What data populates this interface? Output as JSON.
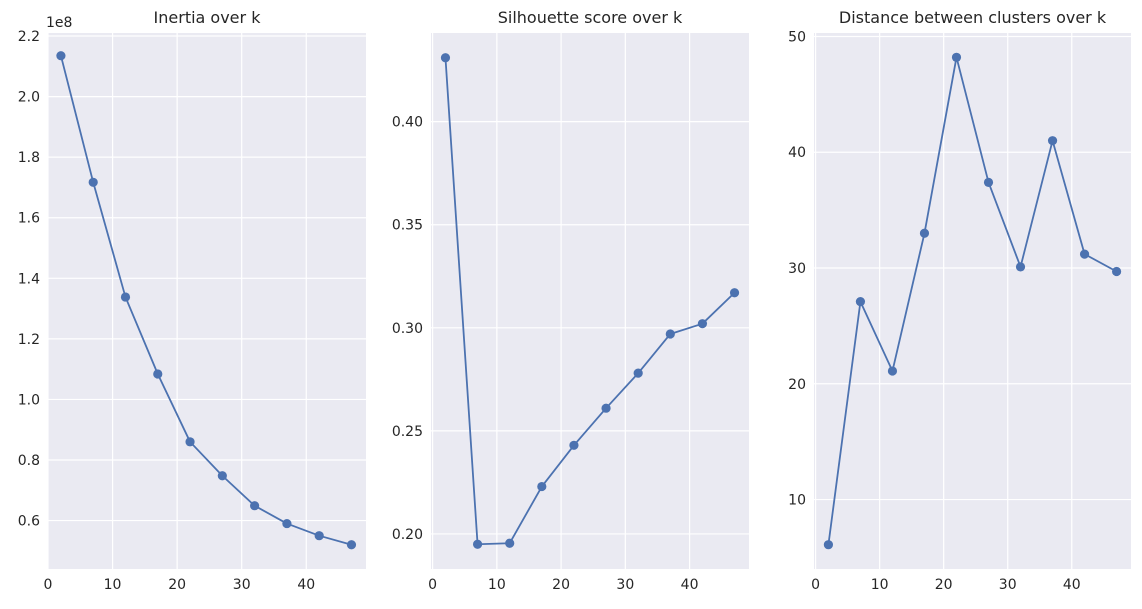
{
  "figure": {
    "background": "#ffffff",
    "plot_background": "#eaeaf2",
    "grid_color": "#ffffff",
    "line_color": "#4c72b0"
  },
  "chart_data": [
    {
      "type": "line",
      "title": "Inertia over k",
      "xlabel": "",
      "ylabel": "",
      "y_offset_label": "1e8",
      "x": [
        2,
        7,
        12,
        17,
        22,
        27,
        32,
        37,
        42,
        47
      ],
      "values": [
        213500000,
        171700000,
        133800000,
        108400000,
        86000000,
        74800000,
        64900000,
        59000000,
        55000000,
        52000000
      ],
      "xlim": [
        0,
        49.25
      ],
      "ylim": [
        44000000,
        221000000
      ],
      "xticks": [
        0,
        10,
        20,
        30,
        40
      ],
      "yticks": [
        60000000,
        80000000,
        100000000,
        120000000,
        140000000,
        160000000,
        180000000,
        200000000,
        220000000
      ],
      "ytick_labels": [
        "0.6",
        "0.8",
        "1.0",
        "1.2",
        "1.4",
        "1.6",
        "1.8",
        "2.0",
        "2.2"
      ],
      "grid": true,
      "marker": "circle"
    },
    {
      "type": "line",
      "title": "Silhouette score over k",
      "xlabel": "",
      "ylabel": "",
      "x": [
        2,
        7,
        12,
        17,
        22,
        27,
        32,
        37,
        42,
        47
      ],
      "values": [
        0.431,
        0.195,
        0.1955,
        0.223,
        0.243,
        0.261,
        0.278,
        0.297,
        0.302,
        0.317
      ],
      "xlim": [
        -0.25,
        49.25
      ],
      "ylim": [
        0.183,
        0.443
      ],
      "xticks": [
        0,
        10,
        20,
        30,
        40
      ],
      "yticks": [
        0.2,
        0.25,
        0.3,
        0.35,
        0.4
      ],
      "ytick_labels": [
        "0.20",
        "0.25",
        "0.30",
        "0.35",
        "0.40"
      ],
      "grid": true,
      "marker": "circle"
    },
    {
      "type": "line",
      "title": "Distance between clusters over k",
      "xlabel": "",
      "ylabel": "",
      "x": [
        2,
        7,
        12,
        17,
        22,
        27,
        32,
        37,
        42,
        47
      ],
      "values": [
        6.1,
        27.1,
        21.1,
        33.0,
        48.2,
        37.4,
        30.1,
        41.0,
        31.2,
        29.7
      ],
      "xlim": [
        -0.25,
        49.25
      ],
      "ylim": [
        4.0,
        50.3
      ],
      "xticks": [
        0,
        10,
        20,
        30,
        40
      ],
      "yticks": [
        10,
        20,
        30,
        40,
        50
      ],
      "ytick_labels": [
        "10",
        "20",
        "30",
        "40",
        "50"
      ],
      "grid": true,
      "marker": "circle"
    }
  ]
}
